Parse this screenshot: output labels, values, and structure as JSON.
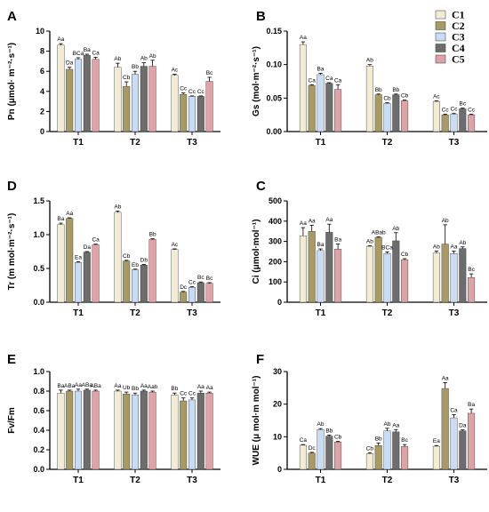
{
  "colors": {
    "C1": "#f2ecd2",
    "C2": "#a89a63",
    "C3": "#c8dcf5",
    "C4": "#6d6d6d",
    "C5": "#dda3a7"
  },
  "legend": [
    "C1",
    "C2",
    "C3",
    "C4",
    "C5"
  ],
  "chart_data": [
    {
      "panel": "A",
      "type": "bar",
      "ylabel": "Pn (μmol· m⁻²·s⁻¹)",
      "ylim": [
        0,
        10
      ],
      "yticks": [
        "0",
        "2",
        "4",
        "6",
        "8",
        "10"
      ],
      "categories": [
        "T1",
        "T2",
        "T3"
      ],
      "series": [
        {
          "name": "C1",
          "values": [
            8.6,
            6.4,
            5.6
          ],
          "errors": [
            0.15,
            0.4,
            0.1
          ],
          "labels": [
            "Aa",
            "Ab",
            "Ac"
          ]
        },
        {
          "name": "C2",
          "values": [
            6.2,
            4.5,
            3.7
          ],
          "errors": [
            0.2,
            0.45,
            0.15
          ],
          "labels": [
            "Da",
            "Cb",
            "Cc"
          ]
        },
        {
          "name": "C3",
          "values": [
            7.2,
            5.7,
            3.5
          ],
          "errors": [
            0.15,
            0.3,
            0.05
          ],
          "labels": [
            "BCa",
            "Bb",
            "Cc"
          ]
        },
        {
          "name": "C4",
          "values": [
            7.6,
            6.5,
            3.5
          ],
          "errors": [
            0.1,
            0.35,
            0.05
          ],
          "labels": [
            "Ba",
            "Ab",
            "Cc"
          ]
        },
        {
          "name": "C5",
          "values": [
            7.2,
            6.5,
            5.0
          ],
          "errors": [
            0.2,
            0.6,
            0.4
          ],
          "labels": [
            "Ca",
            "Ab",
            "Bc"
          ]
        }
      ]
    },
    {
      "panel": "B",
      "type": "bar",
      "ylabel": "Gs (mol·m⁻²·s⁻¹)",
      "ylim": [
        0,
        0.15
      ],
      "yticks": [
        "0.00",
        "0.05",
        "0.10",
        "0.15"
      ],
      "categories": [
        "T1",
        "T2",
        "T3"
      ],
      "series": [
        {
          "name": "C1",
          "values": [
            0.13,
            0.098,
            0.045
          ],
          "errors": [
            0.004,
            0.002,
            0.001
          ],
          "labels": [
            "Aa",
            "Ab",
            "Ac"
          ]
        },
        {
          "name": "C2",
          "values": [
            0.069,
            0.055,
            0.025
          ],
          "errors": [
            0.001,
            0.001,
            0.001
          ],
          "labels": [
            "Ca",
            "Bb",
            "Cc"
          ]
        },
        {
          "name": "C3",
          "values": [
            0.085,
            0.042,
            0.026
          ],
          "errors": [
            0.002,
            0.001,
            0.001
          ],
          "labels": [
            "Ba",
            "Cb",
            "Cc"
          ]
        },
        {
          "name": "C4",
          "values": [
            0.072,
            0.055,
            0.034
          ],
          "errors": [
            0.001,
            0.001,
            0.001
          ],
          "labels": [
            "Ca",
            "Bb",
            "Bc"
          ]
        },
        {
          "name": "C5",
          "values": [
            0.063,
            0.046,
            0.025
          ],
          "errors": [
            0.007,
            0.001,
            0.001
          ],
          "labels": [
            "Ca",
            "Cb",
            "Cc"
          ]
        }
      ]
    },
    {
      "panel": "D",
      "type": "bar",
      "ylabel": "Tr (m mol·m⁻²·s⁻¹)",
      "ylim": [
        0,
        1.5
      ],
      "yticks": [
        "0.0",
        "0.5",
        "1.0",
        "1.5"
      ],
      "categories": [
        "T1",
        "T2",
        "T3"
      ],
      "series": [
        {
          "name": "C1",
          "values": [
            1.15,
            1.33,
            0.78
          ],
          "errors": [
            0.02,
            0.02,
            0.01
          ],
          "labels": [
            "Ba",
            "Ab",
            "Ac"
          ]
        },
        {
          "name": "C2",
          "values": [
            1.24,
            0.61,
            0.15
          ],
          "errors": [
            0.01,
            0.01,
            0.01
          ],
          "labels": [
            "Aa",
            "Cb",
            "Dc"
          ]
        },
        {
          "name": "C3",
          "values": [
            0.59,
            0.48,
            0.22
          ],
          "errors": [
            0.01,
            0.01,
            0.01
          ],
          "labels": [
            "Ea",
            "Eb",
            "Cc"
          ]
        },
        {
          "name": "C4",
          "values": [
            0.74,
            0.55,
            0.29
          ],
          "errors": [
            0.01,
            0.01,
            0.01
          ],
          "labels": [
            "Da",
            "Db",
            "Bc"
          ]
        },
        {
          "name": "C5",
          "values": [
            0.85,
            0.93,
            0.28
          ],
          "errors": [
            0.01,
            0.01,
            0.01
          ],
          "labels": [
            "Ca",
            "Bb",
            "Bc"
          ]
        }
      ]
    },
    {
      "panel": "C",
      "type": "bar",
      "ylabel": "Ci (μmol·mol⁻¹)",
      "ylim": [
        0,
        500
      ],
      "yticks": [
        "0",
        "100",
        "200",
        "300",
        "400",
        "500"
      ],
      "categories": [
        "T1",
        "T2",
        "T3"
      ],
      "series": [
        {
          "name": "C1",
          "values": [
            328,
            276,
            243
          ],
          "errors": [
            40,
            3,
            10
          ],
          "labels": [
            "Aa",
            "Ab",
            "Ab"
          ]
        },
        {
          "name": "C2",
          "values": [
            350,
            320,
            287
          ],
          "errors": [
            30,
            3,
            95
          ],
          "labels": [
            "Aa",
            "ABab",
            "Ab"
          ]
        },
        {
          "name": "C3",
          "values": [
            255,
            240,
            240
          ],
          "errors": [
            8,
            8,
            12
          ],
          "labels": [
            "Ba",
            "BCa",
            "Aa"
          ]
        },
        {
          "name": "C4",
          "values": [
            345,
            303,
            265
          ],
          "errors": [
            40,
            40,
            8
          ],
          "labels": [
            "Aa",
            "Ab",
            "Ab"
          ]
        },
        {
          "name": "C5",
          "values": [
            262,
            210,
            122
          ],
          "errors": [
            25,
            5,
            18
          ],
          "labels": [
            "Ba",
            "Cb",
            "Bc"
          ]
        }
      ]
    },
    {
      "panel": "E",
      "type": "bar",
      "ylabel": "Fv/Fm",
      "ylim": [
        0,
        1.0
      ],
      "yticks": [
        "0.0",
        "0.2",
        "0.4",
        "0.6",
        "0.8",
        "1.0"
      ],
      "categories": [
        "T1",
        "T2",
        "T3"
      ],
      "series": [
        {
          "name": "C1",
          "values": [
            0.78,
            0.8,
            0.76
          ],
          "errors": [
            0.03,
            0.01,
            0.02
          ],
          "labels": [
            "Ba",
            "Aa",
            "Bb"
          ]
        },
        {
          "name": "C2",
          "values": [
            0.8,
            0.77,
            0.7
          ],
          "errors": [
            0.01,
            0.02,
            0.03
          ],
          "labels": [
            "ABa",
            "Ub",
            "Cc"
          ]
        },
        {
          "name": "C3",
          "values": [
            0.8,
            0.76,
            0.71
          ],
          "errors": [
            0.02,
            0.02,
            0.02
          ],
          "labels": [
            "Aa",
            "Bb",
            "Cc"
          ]
        },
        {
          "name": "C4",
          "values": [
            0.81,
            0.8,
            0.78
          ],
          "errors": [
            0.01,
            0.01,
            0.02
          ],
          "labels": [
            "ABa",
            "Aa",
            "Aa"
          ]
        },
        {
          "name": "C5",
          "values": [
            0.8,
            0.79,
            0.78
          ],
          "errors": [
            0.01,
            0.01,
            0.01
          ],
          "labels": [
            "ABa",
            "Aab",
            "Aa"
          ]
        }
      ]
    },
    {
      "panel": "F",
      "type": "bar",
      "ylabel": "WUE (μ mol·m mol⁻¹)",
      "ylim": [
        0,
        30
      ],
      "yticks": [
        "0",
        "10",
        "20",
        "30"
      ],
      "categories": [
        "T1",
        "T2",
        "T3"
      ],
      "series": [
        {
          "name": "C1",
          "values": [
            7.4,
            4.8,
            7.1
          ],
          "errors": [
            0.2,
            0.3,
            0.2
          ],
          "labels": [
            "Ca",
            "Cb",
            "Ea"
          ]
        },
        {
          "name": "C2",
          "values": [
            5.0,
            7.3,
            24.8
          ],
          "errors": [
            0.2,
            0.8,
            1.8
          ],
          "labels": [
            "Dc",
            "Bb",
            "Aa"
          ]
        },
        {
          "name": "C3",
          "values": [
            12.2,
            11.8,
            15.8
          ],
          "errors": [
            0.3,
            0.8,
            1.0
          ],
          "labels": [
            "Ab",
            "Ab",
            "Ca"
          ]
        },
        {
          "name": "C4",
          "values": [
            10.2,
            11.5,
            11.8
          ],
          "errors": [
            0.3,
            0.7,
            0.3
          ],
          "labels": [
            "Bb",
            "Aa",
            "Da"
          ]
        },
        {
          "name": "C5",
          "values": [
            8.4,
            7.0,
            17.2
          ],
          "errors": [
            0.2,
            0.6,
            1.3
          ],
          "labels": [
            "Cb",
            "Bc",
            "Ba"
          ]
        }
      ]
    }
  ]
}
